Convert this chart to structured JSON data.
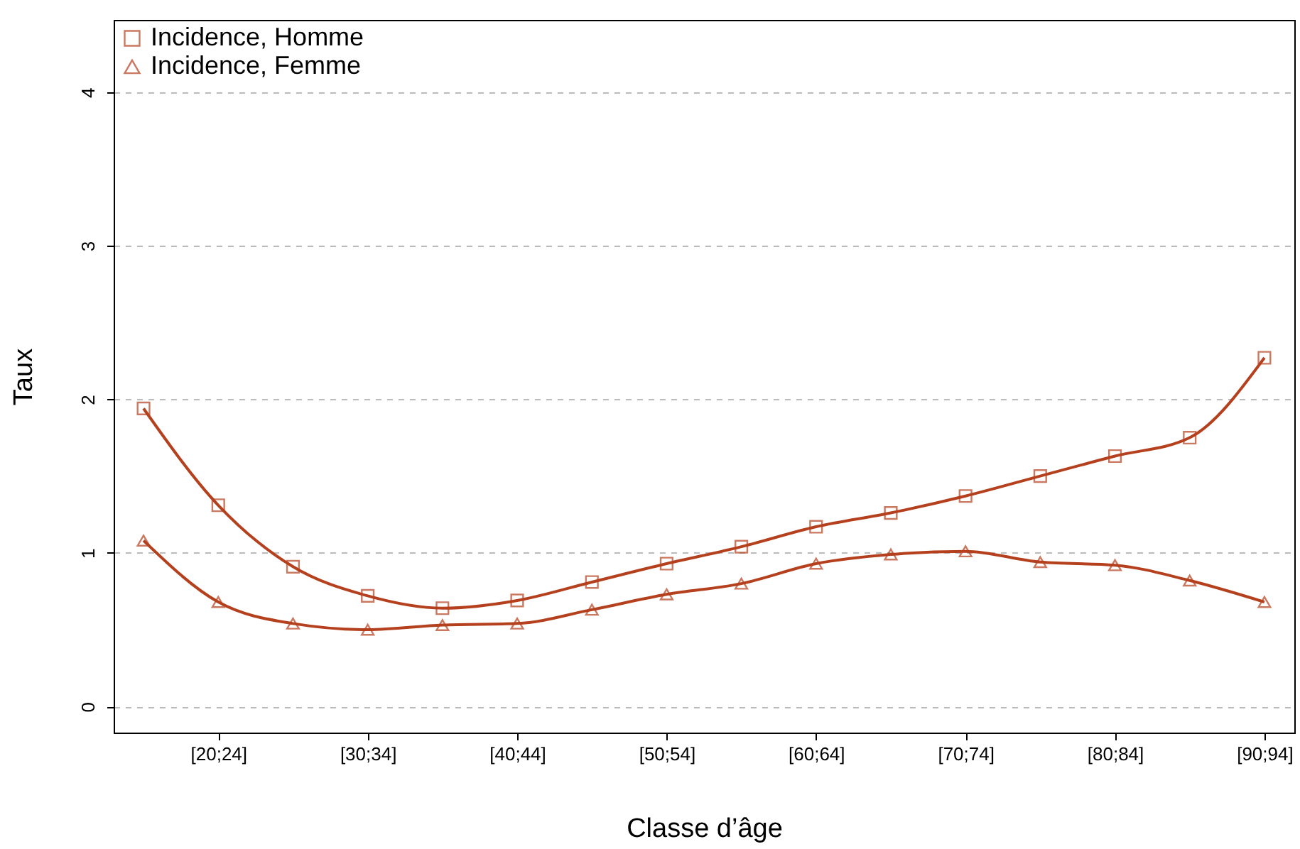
{
  "chart_data": {
    "type": "line",
    "xlabel": "Classe d’âge",
    "ylabel": "Taux",
    "categories": [
      null,
      "[20;24]",
      null,
      "[30;34]",
      null,
      "[40;44]",
      null,
      "[50;54]",
      null,
      "[60;64]",
      null,
      "[70;74]",
      null,
      "[80;84]",
      null,
      "[90;94]"
    ],
    "series": [
      {
        "name": "Incidence, Homme",
        "color": "#b5401e",
        "marker": "square",
        "values": [
          1.94,
          1.31,
          0.91,
          0.72,
          0.64,
          0.69,
          0.81,
          0.93,
          1.04,
          1.17,
          1.26,
          1.37,
          1.5,
          1.63,
          1.75,
          2.27
        ]
      },
      {
        "name": "Incidence, Femme",
        "color": "#b5401e",
        "marker": "triangle",
        "values": [
          1.08,
          0.68,
          0.54,
          0.5,
          0.53,
          0.54,
          0.63,
          0.73,
          0.8,
          0.93,
          0.99,
          1.01,
          0.94,
          0.92,
          0.82,
          0.68
        ]
      }
    ],
    "ylim": [
      -0.17,
      4.47
    ],
    "yticks": [
      0,
      1,
      2,
      3,
      4
    ],
    "grid": "y",
    "legend": "top left",
    "line_style": "solid"
  }
}
